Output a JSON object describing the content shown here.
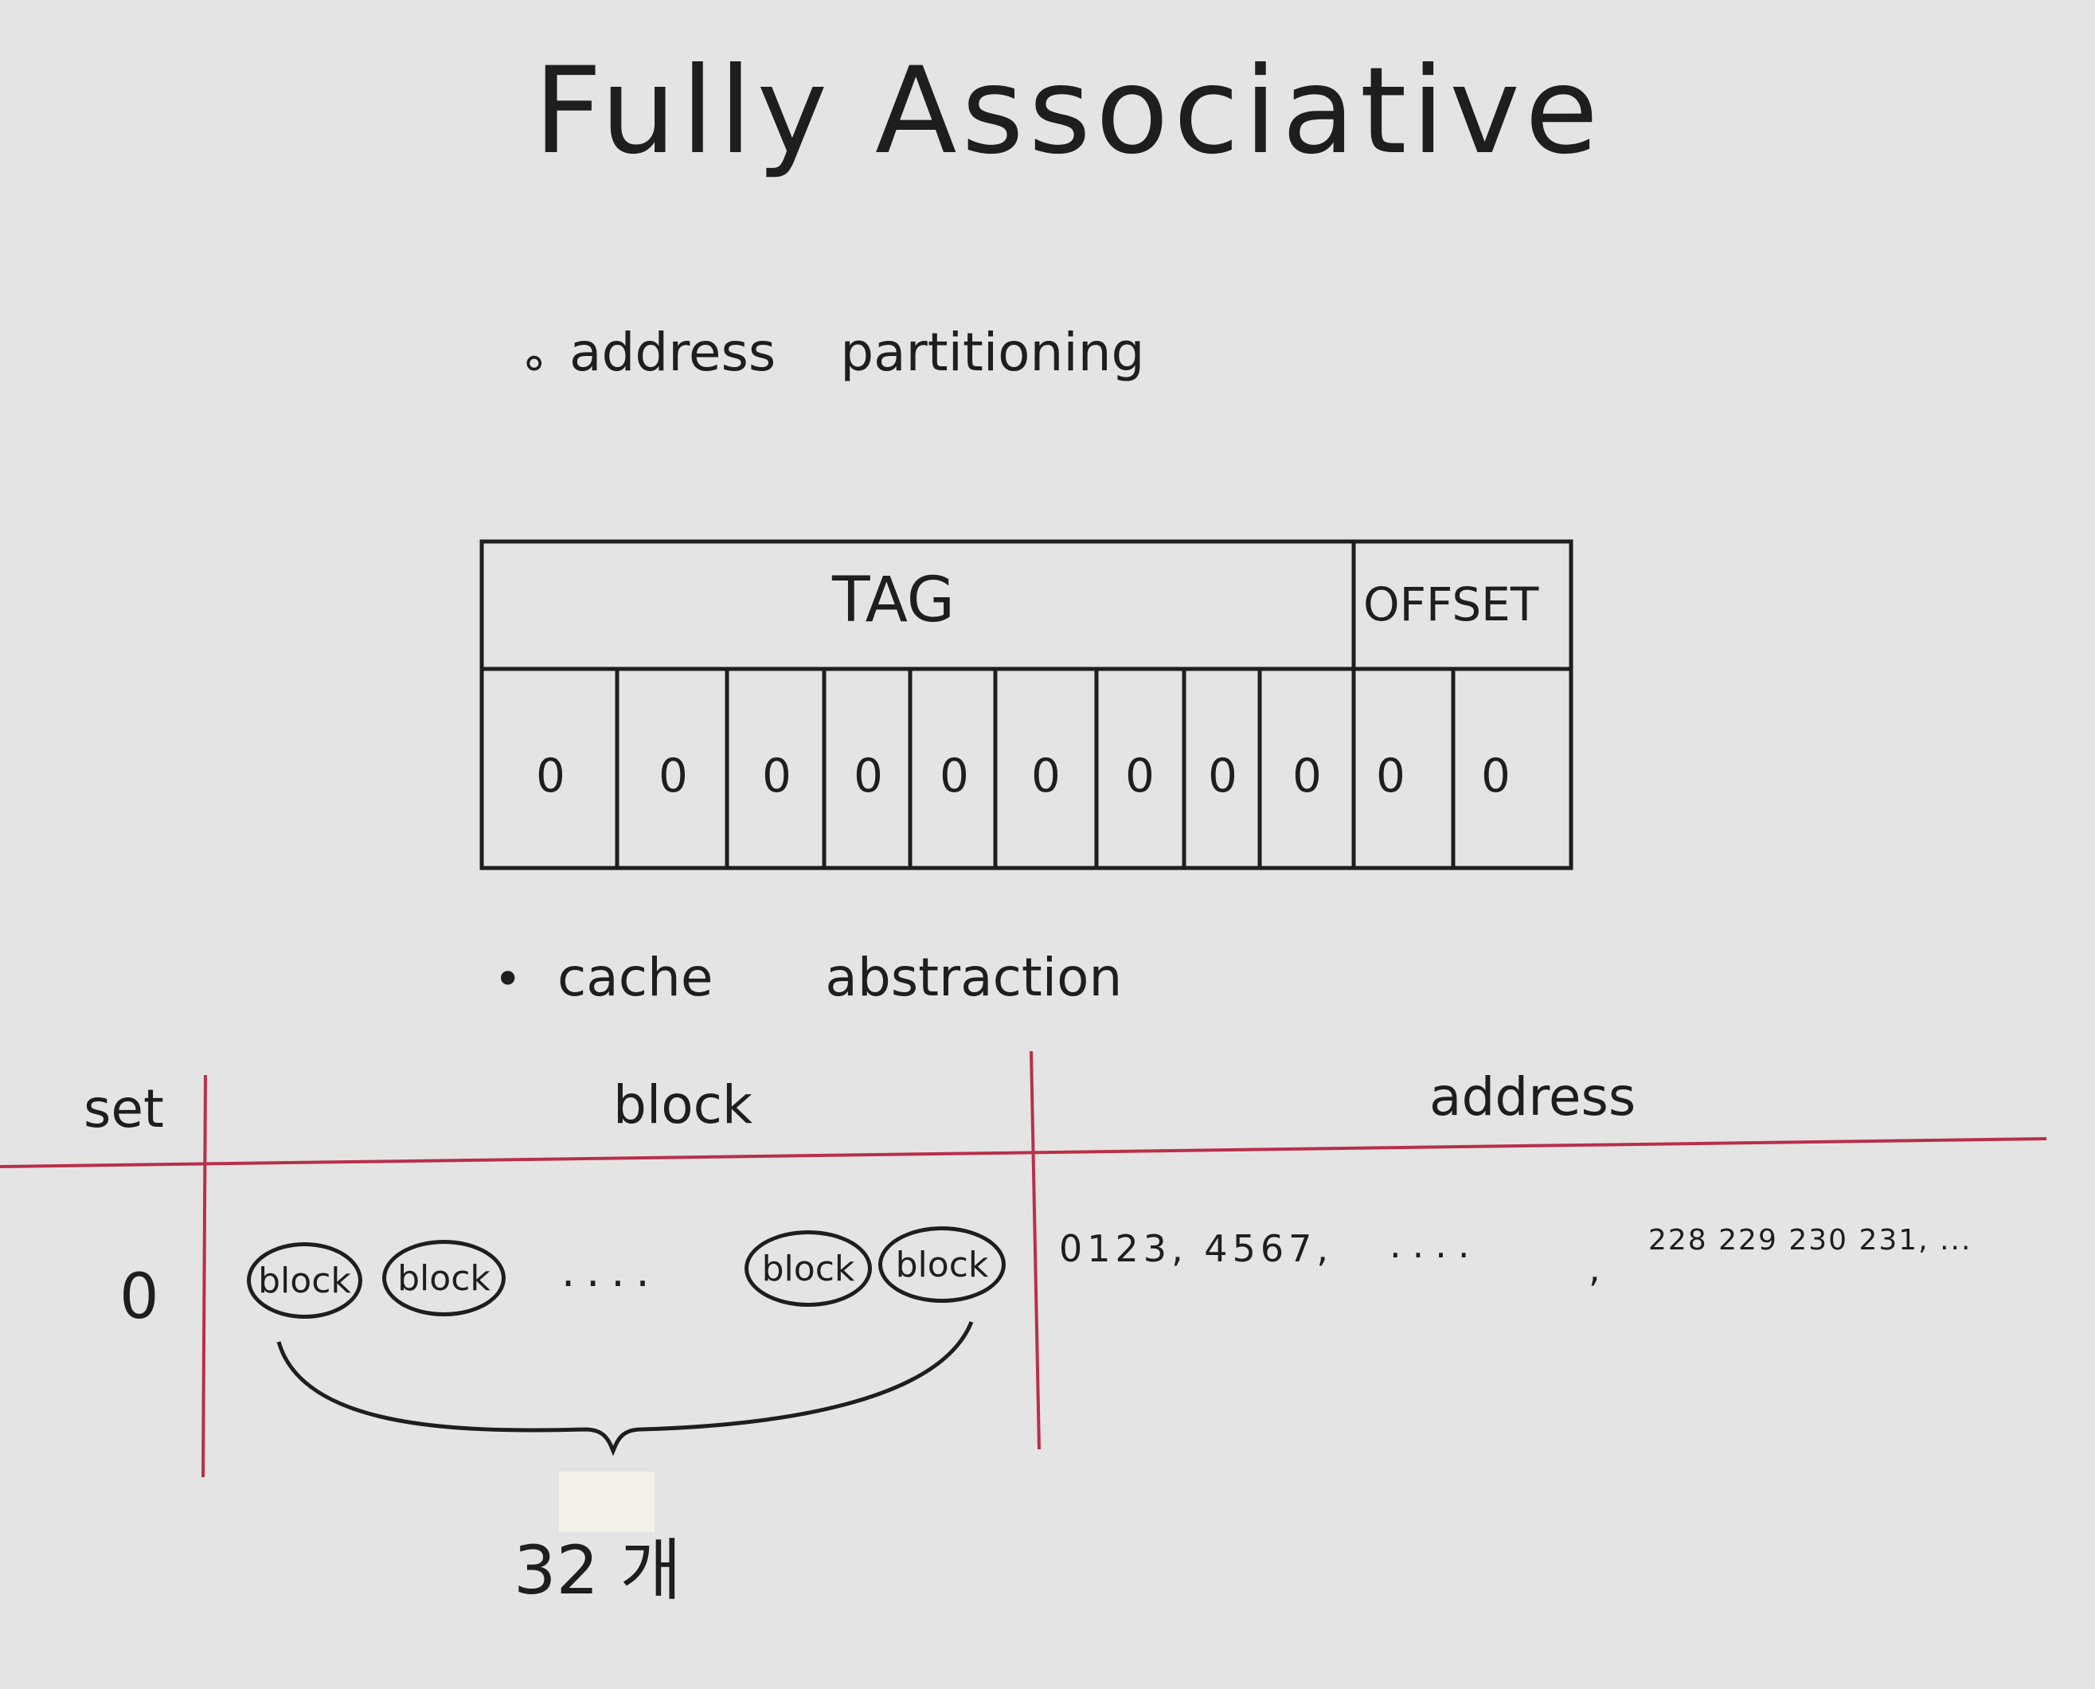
{
  "title": "Fully Associative",
  "section1": {
    "bullet": "∘",
    "label": "address partitioning"
  },
  "address_layout": {
    "tag_label": "TAG",
    "offset_label": "OFFSET",
    "bits": [
      "0",
      "0",
      "0",
      "0",
      "0",
      "0",
      "0",
      "0",
      "0",
      "0",
      "0"
    ]
  },
  "section2": {
    "bullet": "•",
    "label": "cache abstraction"
  },
  "table": {
    "headers": {
      "set": "set",
      "block": "block",
      "address": "address"
    },
    "row": {
      "set": "0",
      "blocks_left": [
        "block",
        "block"
      ],
      "ellipsis": "....",
      "blocks_right": [
        "block",
        "block"
      ],
      "address_start": "0123, 4567,",
      "address_mid": "....",
      "address_sep": ",",
      "address_end": "228 229 230 231, ..."
    },
    "brace_label": "32 개"
  },
  "colors": {
    "ink": "#1e1e1e",
    "red_rule": "#b8304a",
    "paper": "#e4e4e4"
  }
}
